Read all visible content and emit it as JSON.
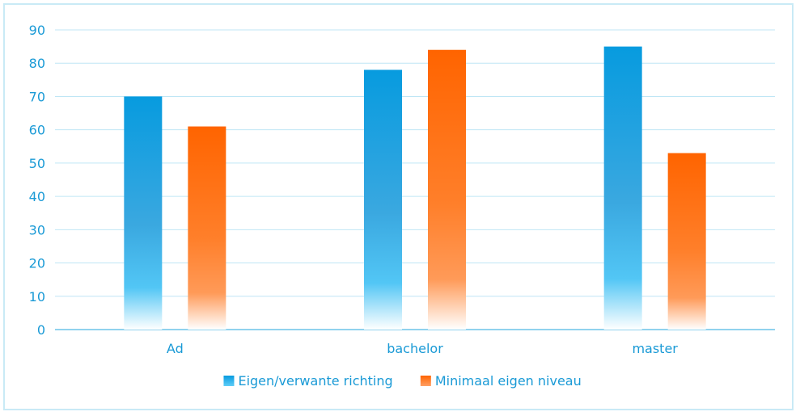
{
  "chart_data": {
    "type": "bar",
    "categories": [
      "Ad",
      "bachelor",
      "master"
    ],
    "series": [
      {
        "name": "Eigen/verwante richting",
        "values": [
          70,
          78,
          85
        ],
        "color": "#0a9fe0"
      },
      {
        "name": "Minimaal eigen niveau",
        "values": [
          61,
          84,
          53
        ],
        "color": "#ff6a00"
      }
    ],
    "ylim": [
      0,
      90
    ],
    "yticks": [
      0,
      10,
      20,
      30,
      40,
      50,
      60,
      70,
      80,
      90
    ],
    "grid": true,
    "legend_position": "bottom-center",
    "colors": {
      "text": "#1a9ad6",
      "grid": "#bfe6f5",
      "axis": "#6cc3e8",
      "frame": "#c9eaf6"
    }
  }
}
